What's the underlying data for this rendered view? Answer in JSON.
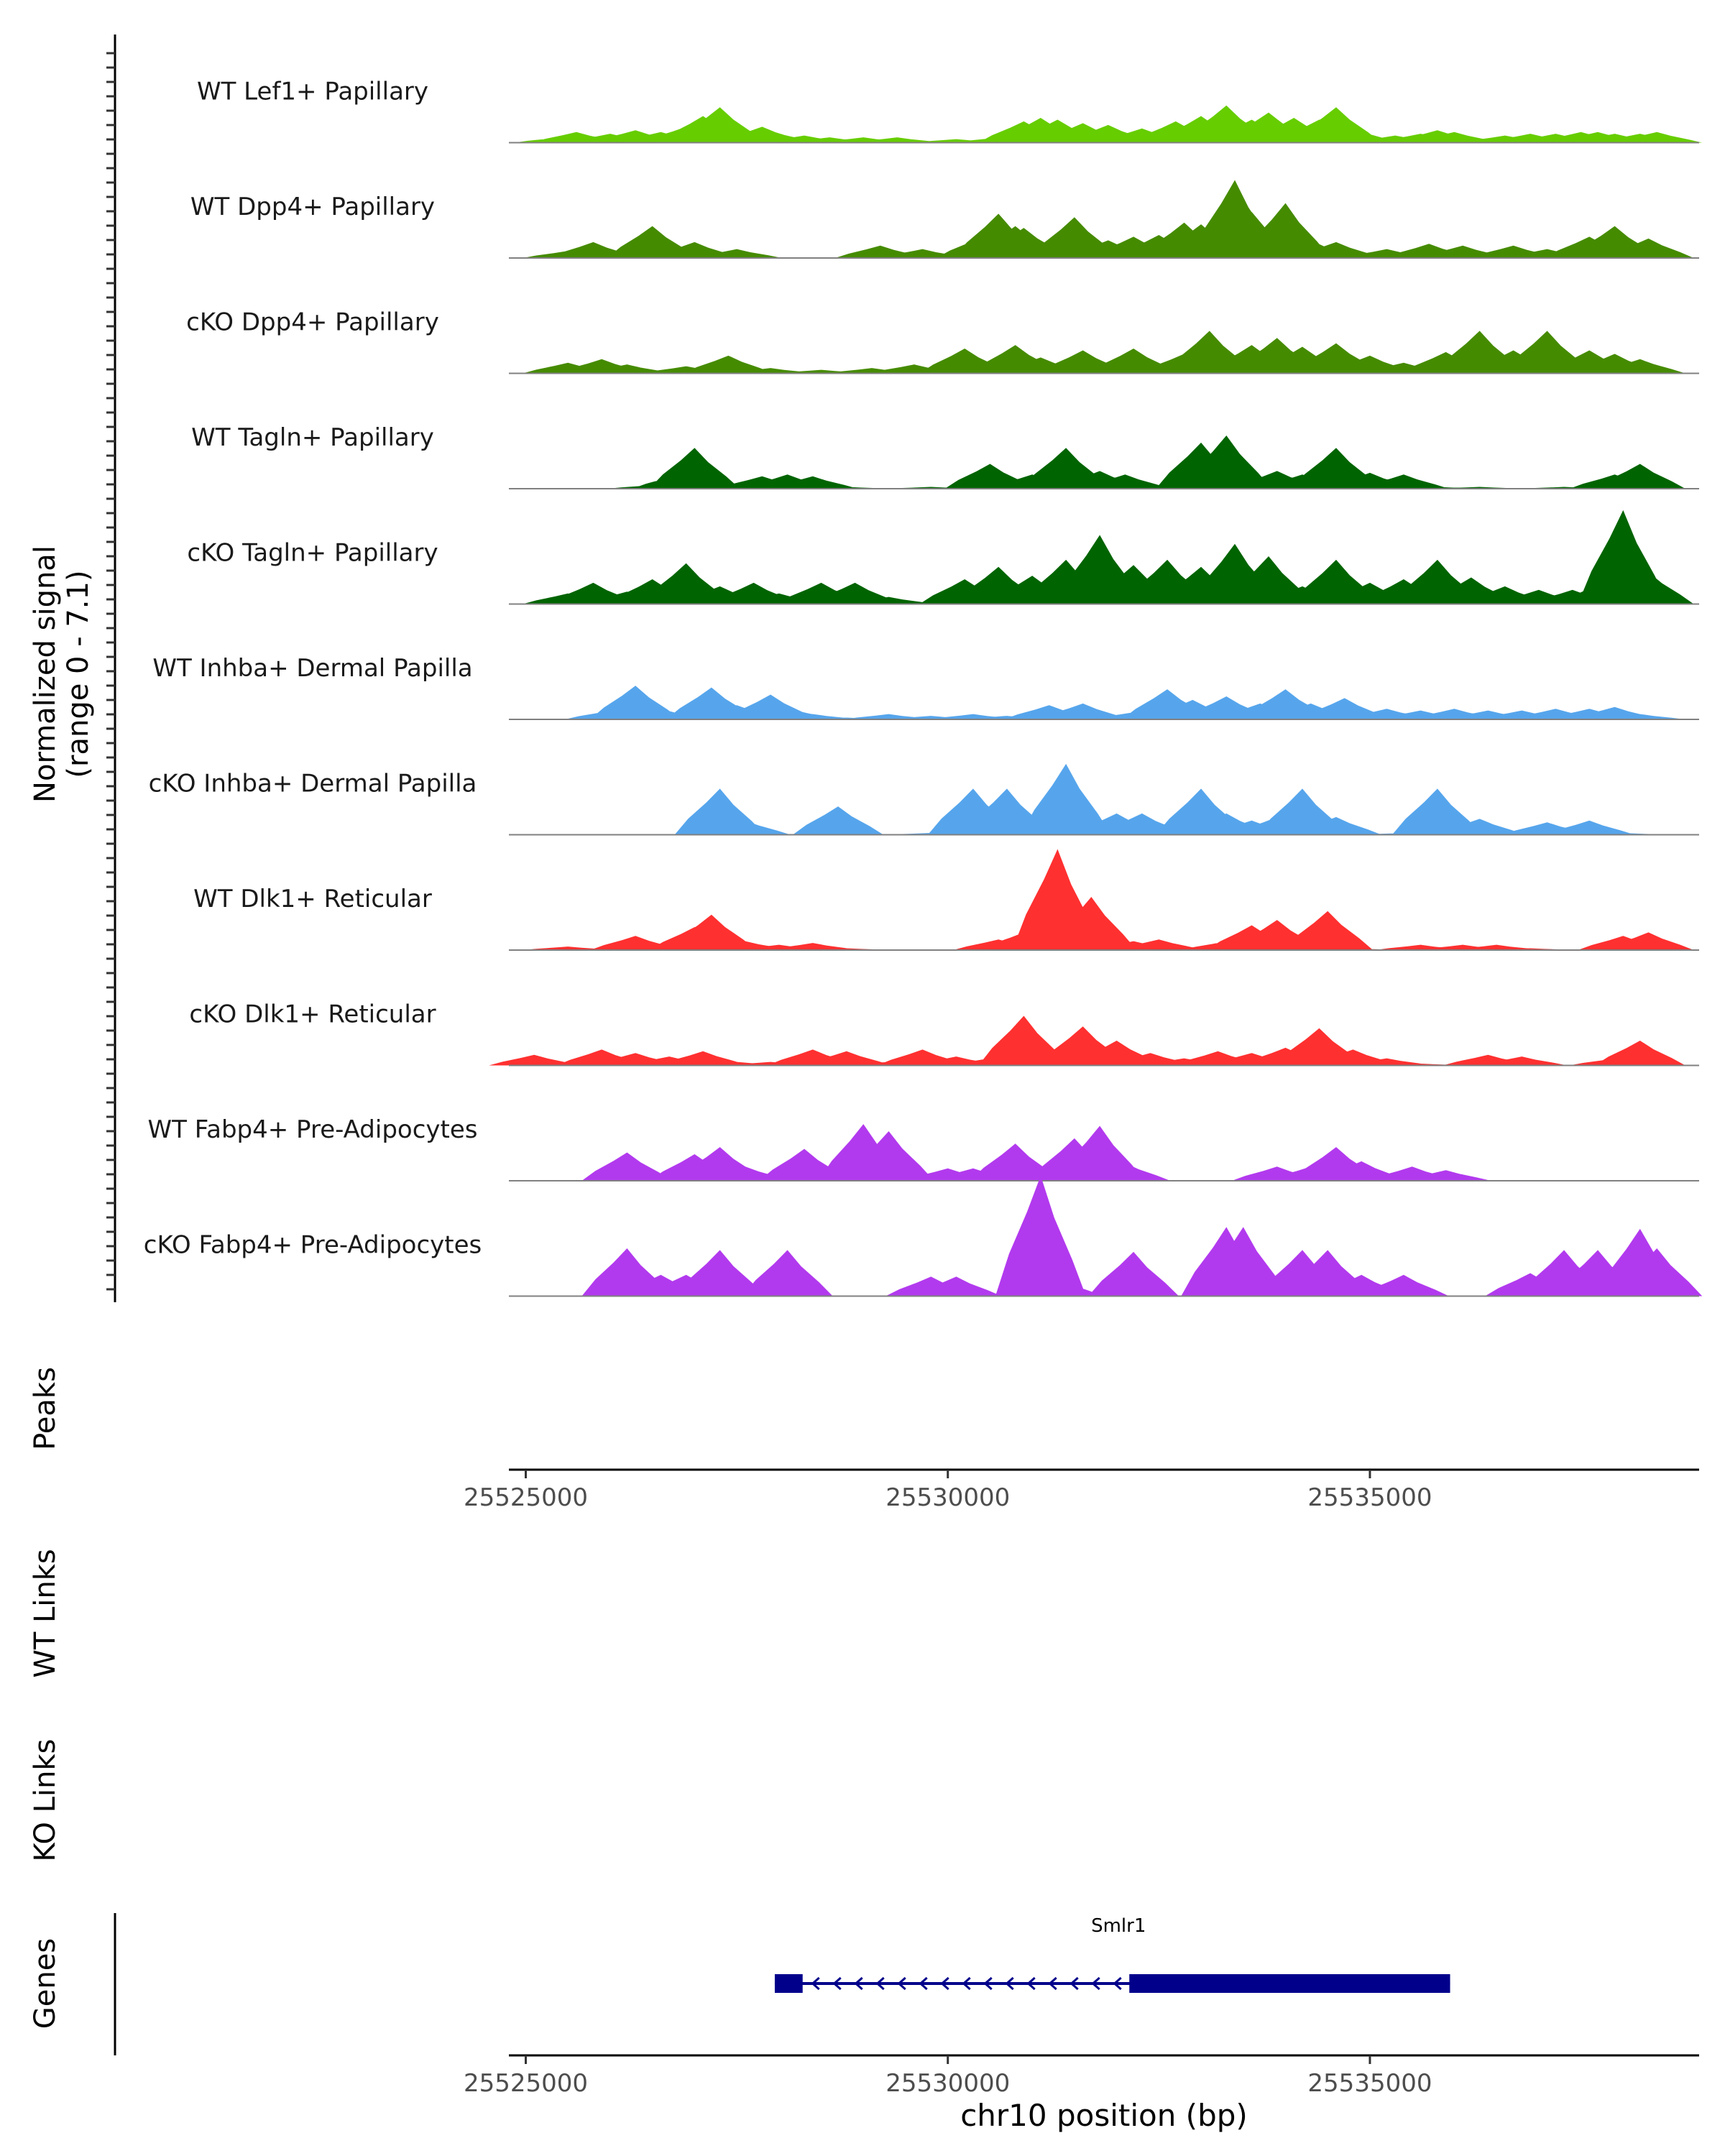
{
  "chart_data": {
    "type": "area",
    "title": "",
    "y_axis_label": [
      "Normalized signal",
      "(range 0 - 7.1)"
    ],
    "ylim": [
      0,
      7.1
    ],
    "region_chr": "chr10",
    "xlim": [
      25524800,
      25538900
    ],
    "x_ticks": [
      25525000,
      25530000,
      25535000
    ],
    "x_tick_labels": [
      "25525000",
      "25530000",
      "25535000"
    ],
    "xlabel": "chr10 position (bp)",
    "tracks": [
      {
        "name": "WT Lef1+ Papillary",
        "color": "#66CD00",
        "x": [
          25525400,
          25525600,
          25526000,
          25526300,
          25526600,
          25526900,
          25527100,
          25527300,
          25527500,
          25527800,
          25528000,
          25528300,
          25528600,
          25529000,
          25529400,
          25530100,
          25530600,
          25530900,
          25531100,
          25531300,
          25531600,
          25531900,
          25532300,
          25532700,
          25533000,
          25533300,
          25533600,
          25533800,
          25534100,
          25534400,
          25534600,
          25534800,
          25535300,
          25535600,
          25535800,
          25536000,
          25536600,
          25536900,
          25537200,
          25537500,
          25537700,
          25537900,
          25538200,
          25538400
        ],
        "values": [
          0.3,
          0.6,
          0.5,
          0.7,
          0.6,
          0.9,
          1.5,
          2.0,
          0.8,
          0.9,
          0.5,
          0.4,
          0.3,
          0.3,
          0.3,
          0.2,
          0.3,
          1.2,
          1.4,
          1.3,
          1.1,
          1.0,
          0.8,
          1.2,
          1.5,
          2.1,
          1.3,
          1.7,
          1.4,
          1.3,
          2.0,
          0.8,
          0.4,
          0.5,
          0.7,
          0.6,
          0.4,
          0.5,
          0.5,
          0.6,
          0.6,
          0.5,
          0.5,
          0.6
        ]
      },
      {
        "name": "WT Dpp4+ Papillary",
        "color": "#458B00",
        "x": [
          25525500,
          25525800,
          25526000,
          25526500,
          25527000,
          25527500,
          25529200,
          25529700,
          25530300,
          25530400,
          25530600,
          25530800,
          25530900,
          25531300,
          25531500,
          25531900,
          25532200,
          25532500,
          25532800,
          25533000,
          25533400,
          25533600,
          25533800,
          25534000,
          25534300,
          25534600,
          25535200,
          25535700,
          25536100,
          25536700,
          25537100,
          25537400,
          25537600,
          25537900,
          25538300
        ],
        "values": [
          0.4,
          0.9,
          0.4,
          1.8,
          0.9,
          0.5,
          0.7,
          0.5,
          0.6,
          1.2,
          2.5,
          1.8,
          1.7,
          1.0,
          2.3,
          1.0,
          1.2,
          1.3,
          2.0,
          1.9,
          4.4,
          2.6,
          1.6,
          3.1,
          1.0,
          0.9,
          0.5,
          0.8,
          0.7,
          0.7,
          0.5,
          0.5,
          1.2,
          1.8,
          1.1
        ]
      },
      {
        "name": "cKO Dpp4+ Papillary",
        "color": "#458B00",
        "x": [
          25525500,
          25525900,
          25526200,
          25526900,
          25527400,
          25527900,
          25528500,
          25529100,
          25529600,
          25530200,
          25530800,
          25531100,
          25531600,
          25532200,
          25532800,
          25533100,
          25533600,
          25533900,
          25534200,
          25534600,
          25535000,
          25535400,
          25535700,
          25535900,
          25536300,
          25536700,
          25537100,
          25537600,
          25537900,
          25538200
        ],
        "values": [
          0.6,
          0.8,
          0.5,
          0.4,
          1.0,
          0.3,
          0.2,
          0.3,
          0.5,
          1.4,
          1.6,
          0.9,
          1.3,
          1.4,
          1.1,
          2.4,
          1.6,
          2.0,
          1.5,
          1.7,
          1.0,
          0.6,
          0.6,
          1.2,
          2.4,
          1.3,
          2.4,
          1.3,
          1.1,
          0.8
        ]
      },
      {
        "name": "WT Tagln+ Papillary",
        "color": "#006400",
        "x": [
          25526500,
          25526800,
          25527000,
          25527400,
          25527800,
          25528100,
          25528400,
          25528800,
          25529200,
          25529800,
          25530500,
          25531000,
          25531400,
          25531800,
          25532100,
          25532700,
          25533000,
          25533300,
          25533600,
          25533900,
          25534200,
          25534600,
          25535000,
          25535400,
          25535800,
          25536300,
          25536800,
          25537300,
          25537900,
          25538200
        ],
        "values": [
          0.2,
          0.8,
          2.3,
          0.2,
          0.7,
          0.8,
          0.7,
          0.1,
          0.0,
          0.1,
          1.4,
          0.8,
          2.3,
          1.0,
          0.8,
          0.1,
          2.6,
          3.0,
          0.9,
          1.0,
          0.8,
          2.3,
          0.9,
          0.8,
          0.1,
          0.1,
          0.0,
          0.1,
          0.8,
          1.4
        ]
      },
      {
        "name": "cKO Tagln+ Papillary",
        "color": "#006400",
        "x": [
          25525500,
          25525800,
          25526200,
          25526500,
          25526900,
          25527300,
          25527700,
          25528000,
          25528500,
          25528900,
          25529300,
          25529700,
          25530200,
          25530600,
          25531000,
          25531400,
          25531800,
          25532200,
          25532600,
          25533000,
          25533400,
          25533800,
          25534200,
          25534600,
          25535000,
          25535400,
          25535800,
          25536200,
          25536600,
          25537000,
          25537400,
          25537800,
          25538000,
          25538300
        ],
        "values": [
          0.6,
          1.2,
          0.7,
          1.4,
          2.3,
          1.0,
          1.2,
          0.6,
          1.2,
          1.2,
          0.4,
          0.1,
          1.4,
          2.1,
          1.6,
          2.5,
          3.9,
          2.2,
          2.5,
          2.1,
          3.4,
          2.7,
          1.0,
          2.5,
          1.2,
          1.4,
          2.5,
          1.5,
          1.0,
          0.8,
          0.8,
          1.4,
          5.3,
          1.8
        ]
      },
      {
        "name": "WT Inhba+ Dermal Papilla",
        "color": "#56A5EC",
        "x": [
          25526000,
          25526300,
          25526500,
          25526900,
          25527200,
          25527500,
          25527900,
          25528200,
          25528400,
          25528800,
          25529300,
          25529800,
          25530300,
          25530700,
          25531200,
          25531600,
          25532200,
          25532600,
          25532900,
          25533300,
          25533700,
          25534000,
          25534300,
          25534700,
          25535200,
          25535600,
          25536000,
          25536400,
          25536800,
          25537200,
          25537600,
          25537900,
          25538200
        ],
        "values": [
          0.5,
          1.9,
          0.8,
          0.1,
          1.8,
          0.8,
          1.4,
          0.5,
          0.3,
          0.1,
          0.3,
          0.2,
          0.3,
          0.2,
          0.8,
          0.9,
          0.4,
          1.7,
          1.1,
          1.3,
          0.9,
          1.7,
          0.9,
          1.2,
          0.6,
          0.5,
          0.6,
          0.5,
          0.5,
          0.6,
          0.6,
          0.7,
          0.3
        ]
      },
      {
        "name": "cKO Inhba+ Dermal Papilla",
        "color": "#56A5EC",
        "x": [
          25527000,
          25527300,
          25527600,
          25528300,
          25528700,
          25529400,
          25529800,
          25530300,
          25530700,
          25531100,
          25531400,
          25531700,
          25532000,
          25532300,
          25532700,
          25533000,
          25533300,
          25533600,
          25533900,
          25534200,
          25534600,
          25535000,
          25535400,
          25535800,
          25536300,
          25536800,
          25537100,
          25537600,
          25538000
        ],
        "values": [
          0.1,
          2.6,
          0.8,
          0.0,
          1.6,
          0.0,
          0.1,
          2.6,
          2.6,
          0.1,
          4.0,
          0.9,
          1.2,
          1.2,
          0.8,
          2.6,
          1.2,
          0.8,
          1.0,
          2.6,
          1.0,
          0.0,
          0.1,
          2.6,
          0.9,
          0.0,
          0.7,
          0.8,
          0.1
        ]
      },
      {
        "name": "WT Dlk1+ Reticular",
        "color": "#FF3030",
        "x": [
          25525500,
          25525900,
          25526300,
          25526700,
          25527000,
          25527200,
          25527600,
          25528000,
          25528400,
          25528800,
          25529300,
          25529800,
          25530600,
          25530900,
          25531100,
          25531300,
          25531500,
          25531700,
          25531900,
          25532200,
          25532500,
          25532900,
          25533300,
          25533600,
          25533900,
          25534200,
          25534500,
          25534800,
          25535200,
          25535600,
          25536100,
          25536500,
          25536900,
          25537500,
          25538000,
          25538300
        ],
        "values": [
          0.2,
          0.1,
          0.8,
          0.1,
          1.3,
          2.0,
          0.5,
          0.3,
          0.4,
          0.1,
          0.0,
          0.0,
          0.6,
          1.0,
          1.2,
          5.7,
          1.5,
          3.0,
          0.9,
          0.5,
          0.6,
          0.1,
          0.5,
          1.4,
          1.7,
          0.8,
          2.2,
          0.1,
          0.0,
          0.3,
          0.3,
          0.3,
          0.1,
          0.0,
          0.8,
          1.0
        ]
      },
      {
        "name": "cKO Dlk1+ Reticular",
        "color": "#FF3030",
        "x": [
          25525100,
          25525400,
          25525900,
          25526300,
          25526700,
          25527100,
          25527500,
          25527900,
          25528400,
          25528800,
          25529300,
          25529700,
          25530100,
          25530500,
          25530900,
          25531300,
          25531600,
          25532000,
          25532400,
          25532800,
          25533200,
          25533600,
          25534000,
          25534400,
          25534800,
          25535200,
          25535600,
          25536000,
          25536400,
          25536800,
          25537200,
          25537500,
          25537900,
          25538200
        ],
        "values": [
          0.6,
          0.1,
          0.9,
          0.7,
          0.5,
          0.8,
          0.2,
          0.2,
          0.9,
          0.8,
          0.2,
          0.9,
          0.5,
          0.4,
          2.8,
          0.1,
          2.2,
          1.4,
          0.7,
          0.4,
          0.8,
          0.7,
          1.0,
          2.1,
          0.9,
          0.4,
          0.1,
          0.0,
          0.6,
          0.5,
          0.0,
          0.0,
          0.4,
          1.4
        ]
      },
      {
        "name": "WT Fabp4+ Pre-Adipocytes",
        "color": "#B23AEE",
        "x": [
          25526200,
          25526600,
          25527000,
          25527300,
          25527600,
          25527900,
          25528300,
          25528800,
          25529000,
          25529300,
          25529700,
          25530000,
          25530300,
          25530800,
          25531100,
          25531300,
          25531500,
          25531800,
          25532100,
          25532500,
          25532900,
          25533300,
          25533600,
          25533900,
          25534300,
          25534600,
          25534900,
          25535200,
          25535500,
          25535900
        ],
        "values": [
          1.6,
          0.0,
          1.5,
          1.9,
          0.8,
          0.0,
          1.8,
          0.0,
          3.2,
          2.8,
          0.0,
          0.7,
          0.7,
          2.1,
          0.0,
          1.0,
          2.4,
          3.1,
          1.0,
          0.0,
          0.0,
          0.0,
          0.0,
          0.8,
          0.8,
          1.9,
          1.1,
          0.0,
          0.8,
          0.6
        ]
      },
      {
        "name": "cKO Fabp4+ Pre-Adipocytes",
        "color": "#B23AEE",
        "x": [
          25526200,
          25526600,
          25526900,
          25527300,
          25527700,
          25528100,
          25528600,
          25529200,
          25529800,
          25530100,
          25530600,
          25531100,
          25531300,
          25531600,
          25532200,
          25532600,
          25533000,
          25533300,
          25533500,
          25533900,
          25534200,
          25534500,
          25534900,
          25535400,
          25535900,
          25536400,
          25536900,
          25537300,
          25537700,
          25538000,
          25538200,
          25538400
        ],
        "values": [
          2.7,
          1.2,
          1.2,
          2.6,
          0.0,
          2.6,
          0.0,
          0.0,
          1.1,
          1.1,
          0.0,
          6.8,
          1.0,
          0.0,
          2.5,
          0.0,
          0.0,
          3.9,
          3.9,
          0.0,
          2.6,
          2.6,
          1.2,
          1.2,
          0.0,
          0.0,
          1.3,
          2.6,
          2.6,
          1.2,
          3.8,
          2.7
        ]
      }
    ],
    "peaks_track_label": "Peaks",
    "wt_links_label": "WT Links",
    "ko_links_label": "KO Links",
    "genes_track_label": "Genes",
    "genes": [
      {
        "name": "Smlr1",
        "strand": "-",
        "start": 25527950,
        "end": 25535950,
        "exons": [
          [
            25527950,
            25528280
          ],
          [
            25532150,
            25535950
          ]
        ],
        "color": "#00008B"
      }
    ]
  }
}
